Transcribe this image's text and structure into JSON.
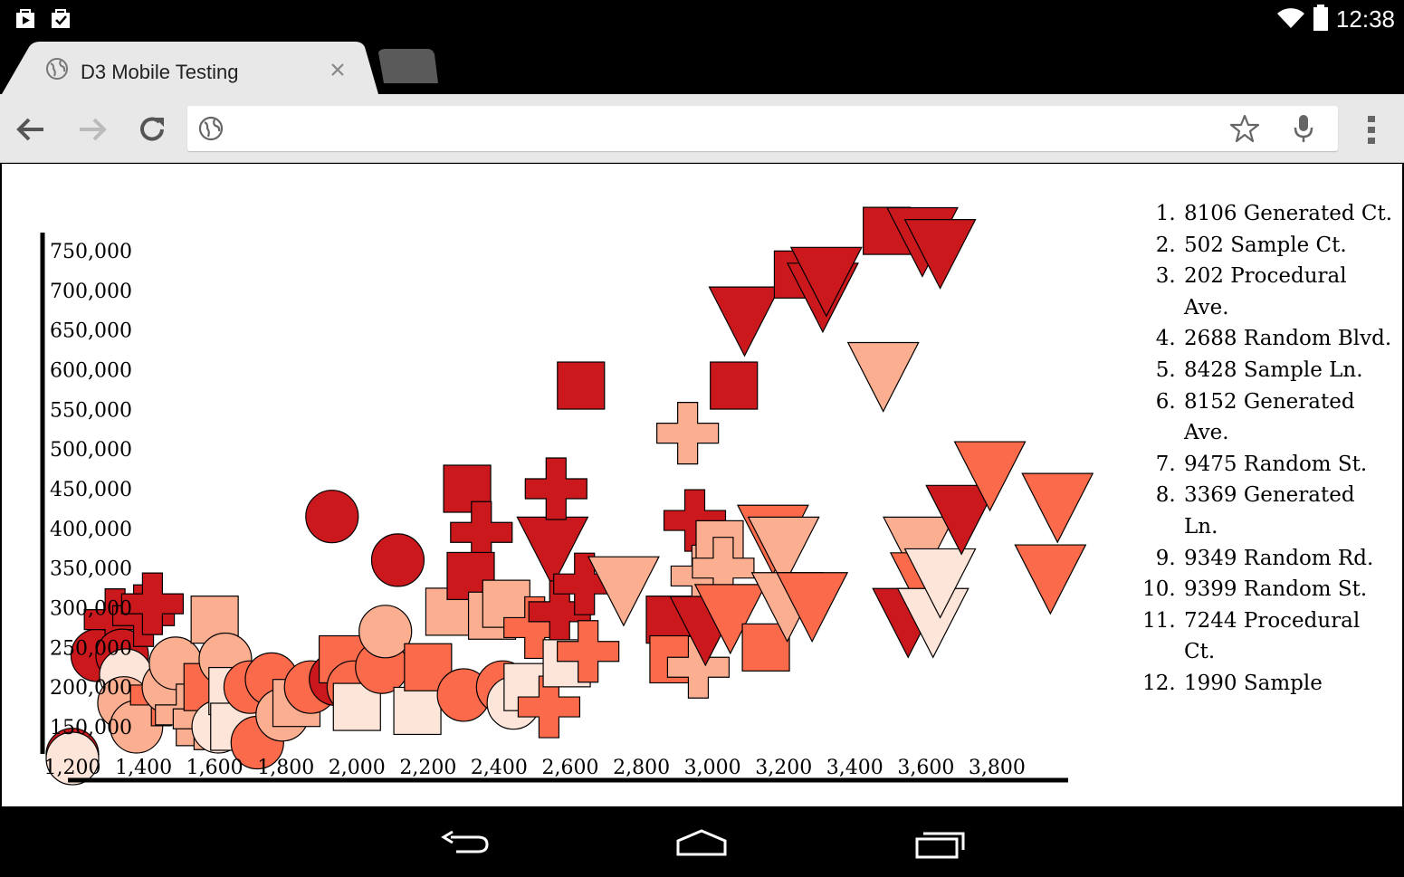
{
  "status_bar": {
    "time": "12:38",
    "icons": [
      "play-store-icon",
      "task-check-icon",
      "wifi-icon",
      "battery-icon"
    ]
  },
  "browser": {
    "tab_title": "D3 Mobile Testing",
    "address_value": "",
    "icons": [
      "back-icon",
      "forward-icon",
      "reload-icon",
      "globe-icon",
      "star-icon",
      "mic-icon",
      "menu-icon",
      "close-tab-icon"
    ]
  },
  "addresses": [
    "8106 Generated Ct.",
    "502 Sample Ct.",
    "202 Procedural Ave.",
    "2688 Random Blvd.",
    "8428 Sample Ln.",
    "8152 Generated Ave.",
    "9475 Random St.",
    "3369 Generated Ln.",
    "9349 Random Rd.",
    "9399 Random St.",
    "7244 Procedural Ct.",
    "1990 Sample"
  ],
  "chart_data": {
    "type": "scatter",
    "x_ticks": [
      "1,200",
      "1,400",
      "1,600",
      "1,800",
      "2,000",
      "2,200",
      "2,400",
      "2,600",
      "2,800",
      "3,000",
      "3,200",
      "3,400",
      "3,600",
      "3,800"
    ],
    "y_ticks": [
      "150,000",
      "200,000",
      "250,000",
      "300,000",
      "350,000",
      "400,000",
      "450,000",
      "500,000",
      "550,000",
      "600,000",
      "650,000",
      "700,000",
      "750,000"
    ],
    "xlim": [
      1200,
      4050
    ],
    "ylim": [
      100000,
      780000
    ],
    "shapes": [
      "circle",
      "cross",
      "square",
      "triangle-down"
    ],
    "colors": [
      "#fee5d9",
      "#fcae91",
      "#fb6a4a",
      "#cb181d"
    ],
    "points": [
      {
        "x": 1200,
        "y": 115000,
        "shape": "circle",
        "color": 3
      },
      {
        "x": 1200,
        "y": 110000,
        "shape": "circle",
        "color": 0
      },
      {
        "x": 1270,
        "y": 240000,
        "shape": "circle",
        "color": 3
      },
      {
        "x": 1320,
        "y": 285000,
        "shape": "cross",
        "color": 3
      },
      {
        "x": 1340,
        "y": 240000,
        "shape": "circle",
        "color": 3
      },
      {
        "x": 1350,
        "y": 215000,
        "shape": "circle",
        "color": 0
      },
      {
        "x": 1345,
        "y": 180000,
        "shape": "circle",
        "color": 1
      },
      {
        "x": 1380,
        "y": 150000,
        "shape": "circle",
        "color": 1
      },
      {
        "x": 1400,
        "y": 290000,
        "shape": "cross",
        "color": 3
      },
      {
        "x": 1425,
        "y": 305000,
        "shape": "cross",
        "color": 3
      },
      {
        "x": 1450,
        "y": 190000,
        "shape": "cross",
        "color": 2
      },
      {
        "x": 1470,
        "y": 200000,
        "shape": "circle",
        "color": 1
      },
      {
        "x": 1490,
        "y": 230000,
        "shape": "circle",
        "color": 1
      },
      {
        "x": 1520,
        "y": 165000,
        "shape": "cross",
        "color": 1
      },
      {
        "x": 1570,
        "y": 160000,
        "shape": "cross",
        "color": 1
      },
      {
        "x": 1580,
        "y": 200000,
        "shape": "square",
        "color": 2
      },
      {
        "x": 1600,
        "y": 285000,
        "shape": "square",
        "color": 1
      },
      {
        "x": 1610,
        "y": 150000,
        "shape": "circle",
        "color": 0
      },
      {
        "x": 1630,
        "y": 235000,
        "shape": "circle",
        "color": 1
      },
      {
        "x": 1650,
        "y": 195000,
        "shape": "square",
        "color": 0
      },
      {
        "x": 1655,
        "y": 150000,
        "shape": "square",
        "color": 0
      },
      {
        "x": 1700,
        "y": 200000,
        "shape": "circle",
        "color": 2
      },
      {
        "x": 1720,
        "y": 130000,
        "shape": "circle",
        "color": 2
      },
      {
        "x": 1760,
        "y": 210000,
        "shape": "circle",
        "color": 2
      },
      {
        "x": 1790,
        "y": 165000,
        "shape": "circle",
        "color": 1
      },
      {
        "x": 1830,
        "y": 180000,
        "shape": "square",
        "color": 1
      },
      {
        "x": 1870,
        "y": 200000,
        "shape": "circle",
        "color": 2
      },
      {
        "x": 1930,
        "y": 415000,
        "shape": "circle",
        "color": 3
      },
      {
        "x": 1940,
        "y": 210000,
        "shape": "circle",
        "color": 3
      },
      {
        "x": 1960,
        "y": 235000,
        "shape": "square",
        "color": 2
      },
      {
        "x": 1990,
        "y": 200000,
        "shape": "circle",
        "color": 2
      },
      {
        "x": 2000,
        "y": 175000,
        "shape": "square",
        "color": 0
      },
      {
        "x": 2070,
        "y": 225000,
        "shape": "circle",
        "color": 2
      },
      {
        "x": 2080,
        "y": 270000,
        "shape": "circle",
        "color": 1
      },
      {
        "x": 2115,
        "y": 360000,
        "shape": "circle",
        "color": 3
      },
      {
        "x": 2170,
        "y": 170000,
        "shape": "square",
        "color": 0
      },
      {
        "x": 2200,
        "y": 225000,
        "shape": "square",
        "color": 2
      },
      {
        "x": 2260,
        "y": 295000,
        "shape": "square",
        "color": 1
      },
      {
        "x": 2300,
        "y": 190000,
        "shape": "circle",
        "color": 2
      },
      {
        "x": 2310,
        "y": 450000,
        "shape": "square",
        "color": 3
      },
      {
        "x": 2350,
        "y": 395000,
        "shape": "cross",
        "color": 3
      },
      {
        "x": 2320,
        "y": 340000,
        "shape": "square",
        "color": 3
      },
      {
        "x": 2380,
        "y": 290000,
        "shape": "square",
        "color": 1
      },
      {
        "x": 2410,
        "y": 200000,
        "shape": "circle",
        "color": 2
      },
      {
        "x": 2420,
        "y": 305000,
        "shape": "square",
        "color": 1
      },
      {
        "x": 2440,
        "y": 180000,
        "shape": "circle",
        "color": 0
      },
      {
        "x": 2480,
        "y": 200000,
        "shape": "square",
        "color": 0
      },
      {
        "x": 2500,
        "y": 275000,
        "shape": "cross",
        "color": 2
      },
      {
        "x": 2540,
        "y": 175000,
        "shape": "cross",
        "color": 2
      },
      {
        "x": 2550,
        "y": 380000,
        "shape": "triangle-down",
        "color": 3
      },
      {
        "x": 2560,
        "y": 450000,
        "shape": "cross",
        "color": 3
      },
      {
        "x": 2570,
        "y": 295000,
        "shape": "cross",
        "color": 3
      },
      {
        "x": 2590,
        "y": 230000,
        "shape": "square",
        "color": 0
      },
      {
        "x": 2630,
        "y": 580000,
        "shape": "square",
        "color": 3
      },
      {
        "x": 2640,
        "y": 330000,
        "shape": "cross",
        "color": 3
      },
      {
        "x": 2650,
        "y": 245000,
        "shape": "cross",
        "color": 2
      },
      {
        "x": 2750,
        "y": 330000,
        "shape": "triangle-down",
        "color": 1
      },
      {
        "x": 2880,
        "y": 285000,
        "shape": "square",
        "color": 3
      },
      {
        "x": 2890,
        "y": 235000,
        "shape": "square",
        "color": 2
      },
      {
        "x": 2930,
        "y": 520000,
        "shape": "cross",
        "color": 1
      },
      {
        "x": 2950,
        "y": 410000,
        "shape": "cross",
        "color": 3
      },
      {
        "x": 2970,
        "y": 340000,
        "shape": "cross",
        "color": 1
      },
      {
        "x": 2960,
        "y": 225000,
        "shape": "cross",
        "color": 1
      },
      {
        "x": 2980,
        "y": 280000,
        "shape": "triangle-down",
        "color": 3
      },
      {
        "x": 3020,
        "y": 380000,
        "shape": "square",
        "color": 1
      },
      {
        "x": 3030,
        "y": 350000,
        "shape": "cross",
        "color": 1
      },
      {
        "x": 3050,
        "y": 295000,
        "shape": "triangle-down",
        "color": 2
      },
      {
        "x": 3060,
        "y": 580000,
        "shape": "square",
        "color": 3
      },
      {
        "x": 3090,
        "y": 670000,
        "shape": "triangle-down",
        "color": 3
      },
      {
        "x": 3150,
        "y": 250000,
        "shape": "square",
        "color": 2
      },
      {
        "x": 3170,
        "y": 395000,
        "shape": "triangle-down",
        "color": 2
      },
      {
        "x": 3200,
        "y": 380000,
        "shape": "triangle-down",
        "color": 1
      },
      {
        "x": 3210,
        "y": 310000,
        "shape": "triangle-down",
        "color": 1
      },
      {
        "x": 3280,
        "y": 310000,
        "shape": "triangle-down",
        "color": 2
      },
      {
        "x": 3240,
        "y": 720000,
        "shape": "square",
        "color": 3
      },
      {
        "x": 3310,
        "y": 700000,
        "shape": "triangle-down",
        "color": 3
      },
      {
        "x": 3320,
        "y": 720000,
        "shape": "triangle-down",
        "color": 3
      },
      {
        "x": 3480,
        "y": 600000,
        "shape": "triangle-down",
        "color": 1
      },
      {
        "x": 3490,
        "y": 775000,
        "shape": "square",
        "color": 3
      },
      {
        "x": 3550,
        "y": 290000,
        "shape": "triangle-down",
        "color": 3
      },
      {
        "x": 3580,
        "y": 380000,
        "shape": "triangle-down",
        "color": 1
      },
      {
        "x": 3590,
        "y": 770000,
        "shape": "triangle-down",
        "color": 3
      },
      {
        "x": 3600,
        "y": 335000,
        "shape": "triangle-down",
        "color": 2
      },
      {
        "x": 3620,
        "y": 290000,
        "shape": "triangle-down",
        "color": 0
      },
      {
        "x": 3640,
        "y": 340000,
        "shape": "triangle-down",
        "color": 0
      },
      {
        "x": 3640,
        "y": 755000,
        "shape": "triangle-down",
        "color": 3
      },
      {
        "x": 3700,
        "y": 420000,
        "shape": "triangle-down",
        "color": 3
      },
      {
        "x": 3780,
        "y": 475000,
        "shape": "triangle-down",
        "color": 2
      },
      {
        "x": 3950,
        "y": 345000,
        "shape": "triangle-down",
        "color": 2
      },
      {
        "x": 3970,
        "y": 435000,
        "shape": "triangle-down",
        "color": 2
      }
    ]
  }
}
